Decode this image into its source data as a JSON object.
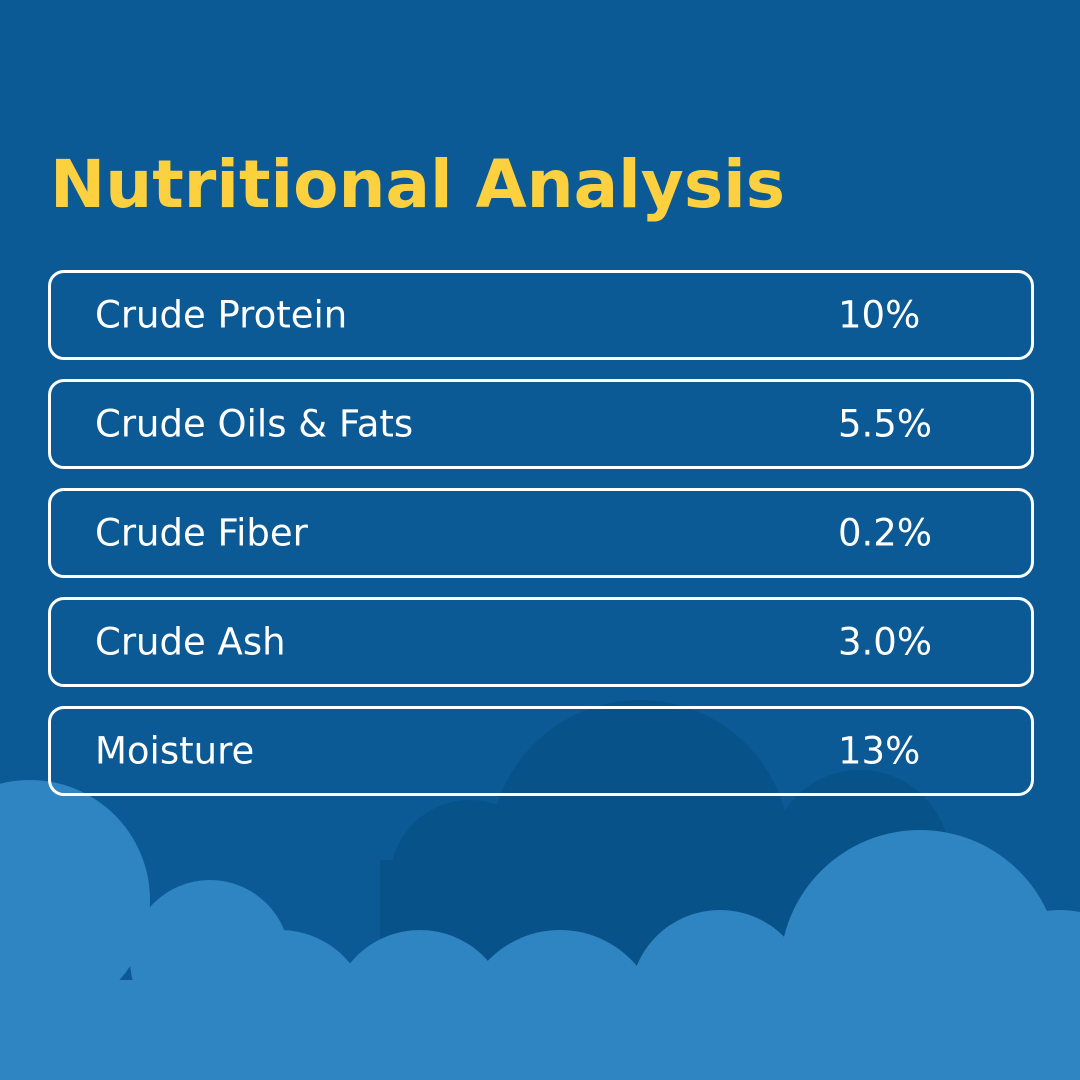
{
  "title": "Nutritional Analysis",
  "nutrients": [
    {
      "label": "Crude Protein",
      "value": "10%"
    },
    {
      "label": "Crude Oils & Fats",
      "value": "5.5%"
    },
    {
      "label": "Crude Fiber",
      "value": "0.2%"
    },
    {
      "label": "Crude Ash",
      "value": "3.0%"
    },
    {
      "label": "Moisture",
      "value": "13%"
    }
  ],
  "colors": {
    "background": "#0b5a95",
    "title": "#fdd03f",
    "text": "#ffffff",
    "border": "#ffffff",
    "cloud_light": "#2e85c1",
    "cloud_dark": "#08528a"
  }
}
